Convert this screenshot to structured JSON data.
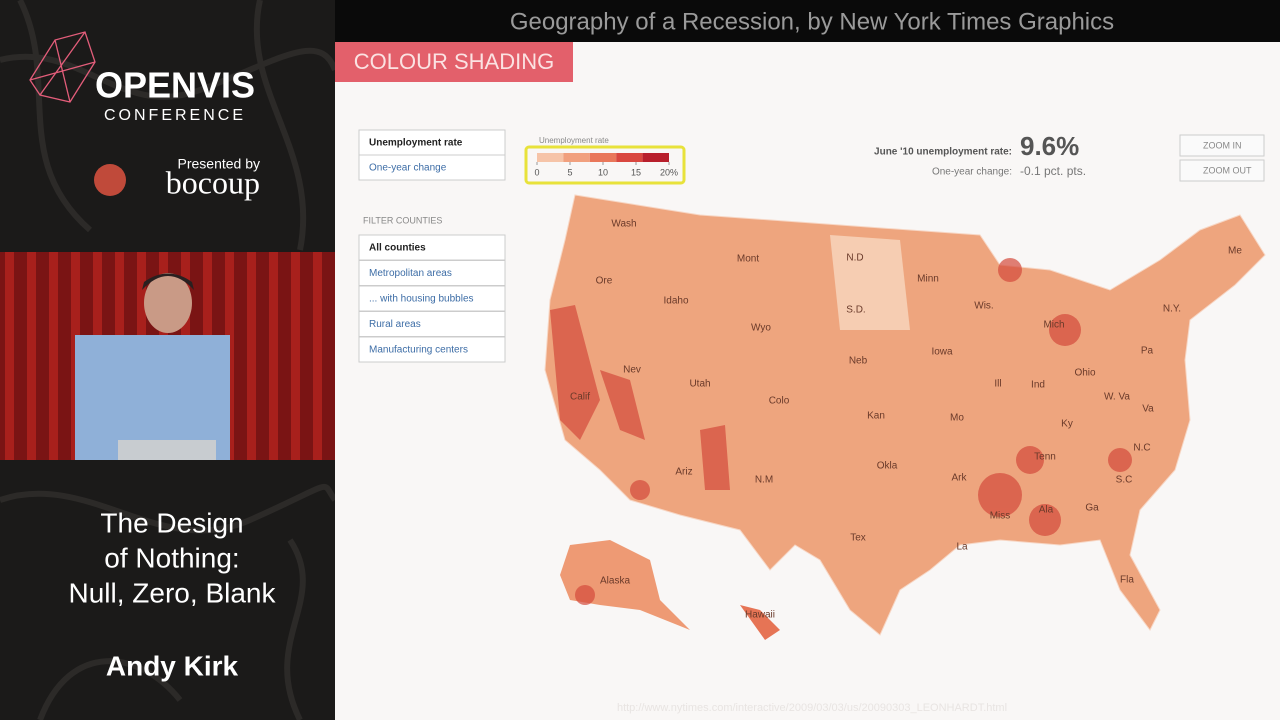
{
  "conference": {
    "name": "OPENVIS",
    "subtitle": "CONFERENCE",
    "presented_by": "Presented by",
    "sponsor": "bocoup"
  },
  "talk": {
    "title_lines": [
      "The Design",
      "of Nothing:",
      "Null, Zero, Blank"
    ],
    "speaker": "Andy Kirk"
  },
  "slide": {
    "title": "Geography of a Recession, by New York Times Graphics",
    "tab": "COLOUR SHADING",
    "url": "http://www.nytimes.com/interactive/2009/03/03/us/20090303_LEONHARDT.html"
  },
  "map_ui": {
    "view_buttons": [
      "Unemployment rate",
      "One-year change"
    ],
    "legend": {
      "title": "Unemployment rate",
      "colors": [
        "#f6c4a8",
        "#f1a07e",
        "#e9775a",
        "#d9473f",
        "#b81f2c"
      ],
      "ticks": [
        0,
        5,
        10,
        15,
        {
          "value": 20,
          "label": "20%"
        }
      ]
    },
    "headline_label": "June '10 unemployment rate:",
    "headline_value": "9.6%",
    "change_label": "One-year change:",
    "change_value": "-0.1 pct. pts.",
    "zoom": [
      "ZOOM IN",
      "ZOOM OUT"
    ],
    "filter_title": "FILTER COUNTIES",
    "filters": [
      "All counties",
      "Metropolitan areas",
      "... with housing bubbles",
      "Rural areas",
      "Manufacturing centers"
    ],
    "state_labels": [
      "Wash",
      "Mont",
      "N.D",
      "Minn",
      "Ore",
      "Idaho",
      "S.D.",
      "Wis.",
      "Me",
      "N.Y.",
      "Mich",
      "Wyo",
      "Neb",
      "Iowa",
      "Pa",
      "Nev",
      "Utah",
      "Ill",
      "Ind",
      "Ohio",
      "Calif",
      "Colo",
      "Kan",
      "Mo",
      "W. Va",
      "Va",
      "Ky",
      "Tenn",
      "N.C",
      "Okla",
      "Ariz",
      "N.M",
      "Ark",
      "S.C",
      "Miss",
      "Ala",
      "Ga",
      "Tex",
      "La",
      "Fla",
      "Alaska",
      "Hawaii"
    ]
  }
}
